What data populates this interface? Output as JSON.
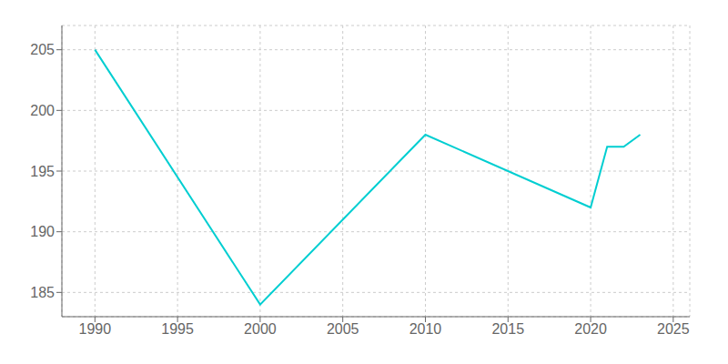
{
  "chart_data": {
    "type": "line",
    "x": [
      1990,
      2000,
      2010,
      2020,
      2021,
      2022,
      2023
    ],
    "values": [
      205,
      184,
      198,
      192,
      197,
      197,
      198
    ],
    "color": "#00CED1",
    "xlim": [
      1988,
      2026
    ],
    "ylim": [
      183,
      207
    ],
    "xticks": [
      1990,
      1995,
      2000,
      2005,
      2010,
      2015,
      2020,
      2025
    ],
    "yticks": [
      185,
      190,
      195,
      200,
      205
    ],
    "grid": true
  }
}
